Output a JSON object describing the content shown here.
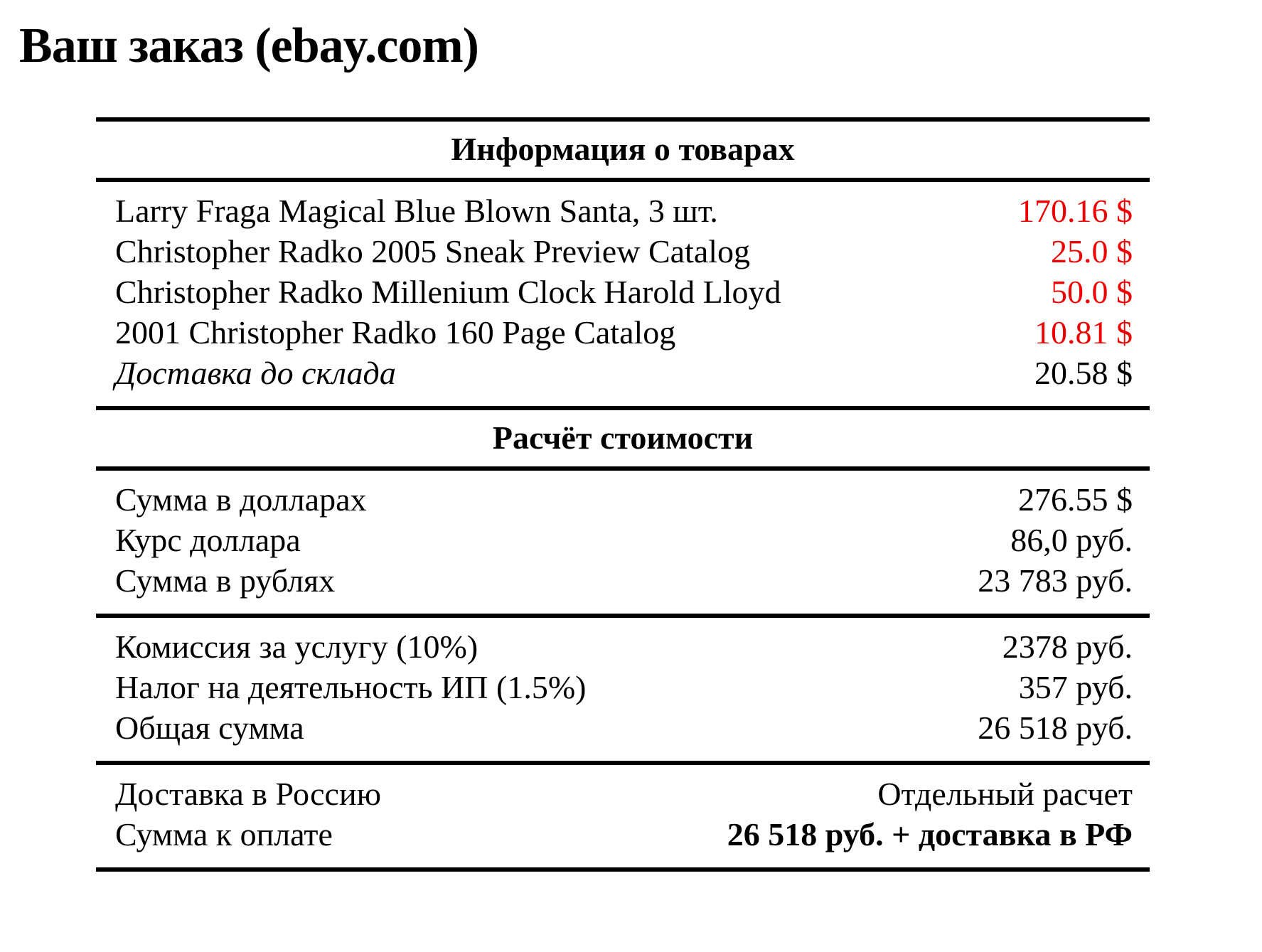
{
  "page": {
    "title": "Ваш заказ (ebay.com)"
  },
  "colors": {
    "price_red": "#ee0000",
    "text": "#000000",
    "background": "#ffffff"
  },
  "table": {
    "products_header": "Информация о товарах",
    "items": [
      {
        "name": "Larry Fraga Magical Blue Blown Santa, 3 шт.",
        "price": "170.16 $"
      },
      {
        "name": "Christopher Radko 2005 Sneak Preview Catalog",
        "price": "25.0 $"
      },
      {
        "name": "Christopher Radko Millenium Clock Harold Lloyd",
        "price": "50.0 $"
      },
      {
        "name": "2001 Christopher Radko 160 Page Catalog",
        "price": "10.81 $"
      },
      {
        "name": "Доставка до склада",
        "price": "20.58 $"
      }
    ],
    "calc_header": "Расчёт стоимости",
    "calc_rows_1": [
      {
        "label": "Сумма в долларах",
        "value": "276.55 $"
      },
      {
        "label": "Курс доллара",
        "value": "86,0 руб."
      },
      {
        "label": "Сумма в рублях",
        "value": "23 783 руб."
      }
    ],
    "calc_rows_2": [
      {
        "label": "Комиссия за услугу (10%)",
        "value": "2378 руб."
      },
      {
        "label": "Налог на деятельность ИП (1.5%)",
        "value": "357 руб."
      },
      {
        "label": "Общая сумма",
        "value": "26 518 руб."
      }
    ],
    "totals_rows": [
      {
        "label": "Доставка в Россию",
        "value": "Отдельный расчет"
      },
      {
        "label": "Сумма к оплате",
        "value": "26 518 руб. + доставка в РФ"
      }
    ]
  }
}
